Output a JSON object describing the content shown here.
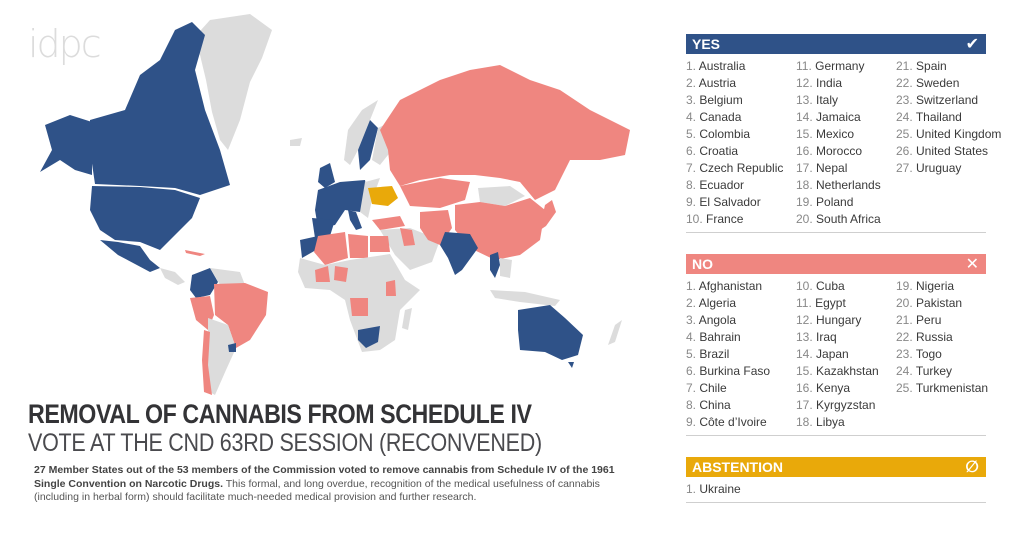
{
  "logo": "idpc",
  "colors": {
    "yes": "#2f5288",
    "no": "#ef8680",
    "abstention": "#e9a90a",
    "non_member": "#dcdcdc"
  },
  "title": {
    "main": "REMOVAL OF CANNABIS FROM SCHEDULE IV",
    "sub": "VOTE AT THE CND 63RD SESSION (RECONVENED)"
  },
  "description": {
    "bold": "27 Member States out of the 53 members of the Commission voted to remove cannabis from Schedule IV of the 1961 Single Convention on Narcotic Drugs.",
    "rest": " This formal, and long overdue, recognition of the medical usefulness of cannabis (including in herbal form) should facilitate much-needed medical provision and further research."
  },
  "yes": {
    "label": "YES",
    "icon": "check-icon",
    "glyph": "✔",
    "count": 27,
    "countries": [
      "Australia",
      "Austria",
      "Belgium",
      "Canada",
      "Colombia",
      "Croatia",
      "Czech Republic",
      "Ecuador",
      "El Salvador",
      "France",
      "Germany",
      "India",
      "Italy",
      "Jamaica",
      "Mexico",
      "Morocco",
      "Nepal",
      "Netherlands",
      "Poland",
      "South Africa",
      "Spain",
      "Sweden",
      "Switzerland",
      "Thailand",
      "United Kingdom",
      "United States",
      "Uruguay"
    ]
  },
  "no": {
    "label": "NO",
    "icon": "x-icon",
    "glyph": "✕",
    "count": 25,
    "countries": [
      "Afghanistan",
      "Algeria",
      "Angola",
      "Bahrain",
      "Brazil",
      "Burkina Faso",
      "Chile",
      "China",
      "Côte d’Ivoire",
      "Cuba",
      "Egypt",
      "Hungary",
      "Iraq",
      "Japan",
      "Kazakhstan",
      "Kenya",
      "Kyrgyzstan",
      "Libya",
      "Nigeria",
      "Pakistan",
      "Peru",
      "Russia",
      "Togo",
      "Turkey",
      "Turkmenistan"
    ]
  },
  "abstention": {
    "label": "ABSTENTION",
    "icon": "empty-set-icon",
    "glyph": "∅",
    "count": 1,
    "countries": [
      "Ukraine"
    ]
  }
}
